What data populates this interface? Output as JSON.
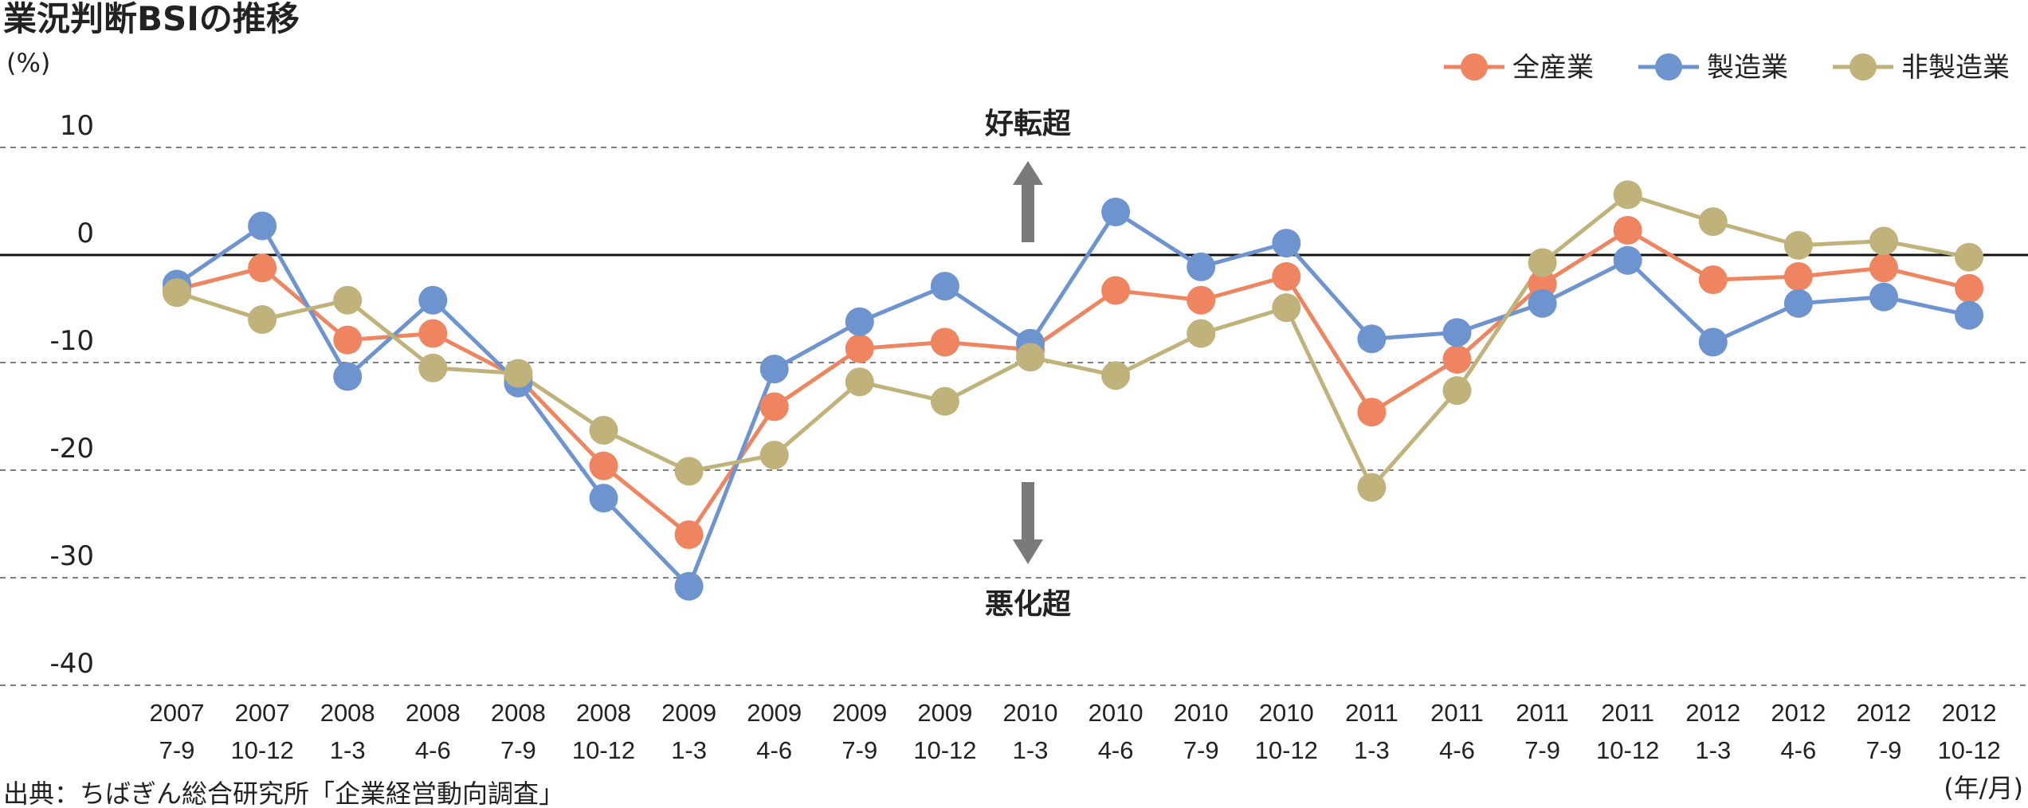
{
  "chart_data": {
    "type": "line",
    "title": "業況判断BSIの推移",
    "ylabel": "(%)",
    "xlabel": "(年/月)",
    "source": "出典：ちばぎん総合研究所「企業経営動向調査」",
    "annotations": {
      "up": "好転超",
      "down": "悪化超"
    },
    "ylim": [
      -40,
      10
    ],
    "yticks": [
      "10",
      "0",
      "-10",
      "-20",
      "-30",
      "-40"
    ],
    "grid": "dashed horizontal",
    "legend_position": "top-right",
    "categories": [
      [
        "2007",
        "7-9"
      ],
      [
        "2007",
        "10-12"
      ],
      [
        "2008",
        "1-3"
      ],
      [
        "2008",
        "4-6"
      ],
      [
        "2008",
        "7-9"
      ],
      [
        "2008",
        "10-12"
      ],
      [
        "2009",
        "1-3"
      ],
      [
        "2009",
        "4-6"
      ],
      [
        "2009",
        "7-9"
      ],
      [
        "2009",
        "10-12"
      ],
      [
        "2010",
        "1-3"
      ],
      [
        "2010",
        "4-6"
      ],
      [
        "2010",
        "7-9"
      ],
      [
        "2010",
        "10-12"
      ],
      [
        "2011",
        "1-3"
      ],
      [
        "2011",
        "4-6"
      ],
      [
        "2011",
        "7-9"
      ],
      [
        "2011",
        "10-12"
      ],
      [
        "2012",
        "1-3"
      ],
      [
        "2012",
        "4-6"
      ],
      [
        "2012",
        "7-9"
      ],
      [
        "2012",
        "10-12"
      ]
    ],
    "series": [
      {
        "name": "全産業",
        "color": "#EE8560",
        "values": [
          -3.2,
          -1.2,
          -7.9,
          -7.3,
          -11.4,
          -19.6,
          -26.0,
          -14.1,
          -8.7,
          -8.1,
          -8.8,
          -3.3,
          -4.2,
          -2.0,
          -14.6,
          -9.7,
          -2.7,
          2.3,
          -2.3,
          -2.0,
          -1.2,
          -3.1
        ]
      },
      {
        "name": "製造業",
        "color": "#6E94CF",
        "values": [
          -2.7,
          2.7,
          -11.3,
          -4.2,
          -11.9,
          -22.6,
          -30.8,
          -10.6,
          -6.2,
          -2.9,
          -8.2,
          4.0,
          -1.1,
          1.1,
          -7.8,
          -7.2,
          -4.5,
          -0.5,
          -8.1,
          -4.5,
          -3.9,
          -5.6
        ]
      },
      {
        "name": "非製造業",
        "color": "#BFB37B",
        "values": [
          -3.5,
          -6.0,
          -4.2,
          -10.5,
          -11.0,
          -16.3,
          -20.1,
          -18.6,
          -11.8,
          -13.6,
          -9.5,
          -11.2,
          -7.3,
          -4.9,
          -21.6,
          -12.6,
          -0.7,
          5.6,
          3.1,
          0.9,
          1.3,
          -0.2
        ]
      }
    ]
  }
}
